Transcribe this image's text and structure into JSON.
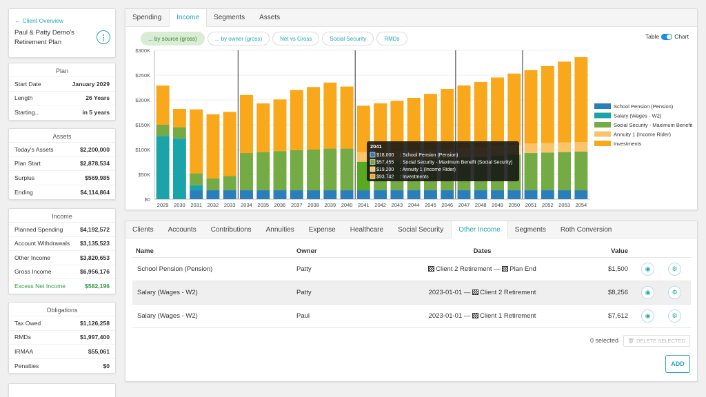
{
  "client": {
    "back_label": "Client Overview",
    "plan_name": "Paul & Patty Demo's Retirement Plan",
    "menu_icon": "kebab-icon"
  },
  "plan": {
    "title": "Plan",
    "rows": [
      {
        "label": "Start Date",
        "value": "January 2029"
      },
      {
        "label": "Length",
        "value": "26 Years"
      },
      {
        "label": "Starting...",
        "value": "in 5 years"
      }
    ]
  },
  "assets": {
    "title": "Assets",
    "rows": [
      {
        "label": "Today's Assets",
        "value": "$2,200,000"
      },
      {
        "label": "Plan Start",
        "value": "$2,878,534"
      },
      {
        "label": "Surplus",
        "value": "$569,985"
      },
      {
        "label": "Ending",
        "value": "$4,114,864"
      }
    ]
  },
  "income": {
    "title": "Income",
    "rows": [
      {
        "label": "Planned Spending",
        "value": "$4,192,572"
      },
      {
        "label": "Account Withdrawals",
        "value": "$3,135,523"
      },
      {
        "label": "Other Income",
        "value": "$3,820,653"
      },
      {
        "label": "Gross Income",
        "value": "$6,956,176"
      },
      {
        "label": "Excess Net Income",
        "value": "$582,196"
      }
    ]
  },
  "obligations": {
    "title": "Obligations",
    "rows": [
      {
        "label": "Tax Owed",
        "value": "$1,126,258"
      },
      {
        "label": "RMDs",
        "value": "$1,997,400"
      },
      {
        "label": "IRMAA",
        "value": "$55,061"
      },
      {
        "label": "Penalties",
        "value": "$0"
      }
    ]
  },
  "chart_panel": {
    "tabs": [
      "Spending",
      "Income",
      "Segments",
      "Assets"
    ],
    "active_tab": 1,
    "pills": [
      "... by source (gross)",
      "... by owner (gross)",
      "Net vs Gross",
      "Social Security",
      "RMDs"
    ],
    "active_pill": 0,
    "toggle_left": "Table",
    "toggle_right": "Chart"
  },
  "chart_data": {
    "type": "bar",
    "stacked": true,
    "categories": [
      "2029",
      "2030",
      "2031",
      "2032",
      "2033",
      "2034",
      "2035",
      "2036",
      "2037",
      "2038",
      "2039",
      "2040",
      "2041",
      "2042",
      "2043",
      "2044",
      "2045",
      "2046",
      "2047",
      "2048",
      "2049",
      "2050",
      "2051",
      "2052",
      "2053",
      "2054"
    ],
    "ylim": [
      0,
      300000
    ],
    "yticks": [
      "$0",
      "$50K",
      "$100K",
      "$150K",
      "$200K",
      "$250K",
      "$300K"
    ],
    "milestone_after_index": [
      4,
      11,
      17,
      21
    ],
    "series": [
      {
        "name": "School Pension (Pension)",
        "color": "#2a7fba",
        "values": [
          0,
          0,
          18000,
          18000,
          18000,
          18000,
          18000,
          18000,
          18000,
          18000,
          18000,
          18000,
          18000,
          18000,
          18000,
          18000,
          18000,
          18000,
          18000,
          18000,
          18000,
          18000,
          18000,
          18000,
          18000,
          18000
        ]
      },
      {
        "name": "Salary (Wages - W2)",
        "color": "#1aa3a8",
        "values": [
          127000,
          122000,
          10000,
          0,
          0,
          0,
          0,
          0,
          0,
          0,
          0,
          0,
          0,
          0,
          0,
          0,
          0,
          0,
          0,
          0,
          0,
          0,
          0,
          0,
          0,
          0
        ]
      },
      {
        "name": "Social Security - Maximum Benefit",
        "color": "#74ab44",
        "values": [
          23000,
          23000,
          24000,
          24000,
          29000,
          75000,
          77000,
          79000,
          81000,
          82000,
          84000,
          84000,
          57455,
          58000,
          60000,
          61000,
          63000,
          64000,
          66000,
          67000,
          70000,
          72000,
          75000,
          76000,
          77000,
          78000
        ]
      },
      {
        "name": "Annuity 1 (Income Rider)",
        "color": "#fcc46a",
        "values": [
          0,
          0,
          0,
          0,
          0,
          0,
          0,
          0,
          0,
          0,
          0,
          0,
          19200,
          19200,
          19200,
          19200,
          19200,
          19200,
          19200,
          19200,
          19200,
          19200,
          19200,
          19200,
          19200,
          19200
        ]
      },
      {
        "name": "Investments",
        "color": "#f9a81b",
        "values": [
          79000,
          37000,
          129000,
          129000,
          129000,
          117000,
          98000,
          104000,
          121000,
          126000,
          133000,
          125000,
          93742,
          98000,
          101000,
          106000,
          112000,
          121000,
          126000,
          132000,
          138000,
          144000,
          148000,
          155000,
          163000,
          171000
        ]
      }
    ],
    "tooltip": {
      "index": 12,
      "title": "2041",
      "lines": [
        {
          "value": "$18,000",
          "label": ": School Pension (Pension)",
          "color": "#2a7fba"
        },
        {
          "value": "$57,455",
          "label": ": Social Security - Maximum Benefit (Social Security)",
          "color": "#74ab44"
        },
        {
          "value": "$19,200",
          "label": ": Annuity 1 (Income Rider)",
          "color": "#fcc46a"
        },
        {
          "value": "$93,742",
          "label": ": Investments",
          "color": "#f9a81b"
        }
      ]
    }
  },
  "bottom_panel": {
    "tabs": [
      "Clients",
      "Accounts",
      "Contributions",
      "Annuities",
      "Expense",
      "Healthcare",
      "Social Security",
      "Other Income",
      "Segments",
      "Roth Conversion"
    ],
    "active_tab": 7,
    "headers": {
      "name": "Name",
      "owner": "Owner",
      "dates": "Dates",
      "value": "Value"
    },
    "rows": [
      {
        "name": "School Pension (Pension)",
        "owner": "Patty",
        "start": "Client 2 Retirement",
        "start_flag": true,
        "sep": " — ",
        "end": "Plan End",
        "end_flag": true,
        "value": "$1,500"
      },
      {
        "name": "Salary (Wages - W2)",
        "owner": "Patty",
        "start": "2023-01-01",
        "start_flag": false,
        "sep": " — ",
        "end": "Client 2 Retirement",
        "end_flag": true,
        "value": "$8,256"
      },
      {
        "name": "Salary (Wages - W2)",
        "owner": "Paul",
        "start": "2023-01-01",
        "start_flag": false,
        "sep": " — ",
        "end": "Client 1 Retirement",
        "end_flag": true,
        "value": "$7,612"
      }
    ],
    "selected_text": "0 selected",
    "delete_label": "DELETE SELECTED",
    "add_label": "ADD"
  }
}
